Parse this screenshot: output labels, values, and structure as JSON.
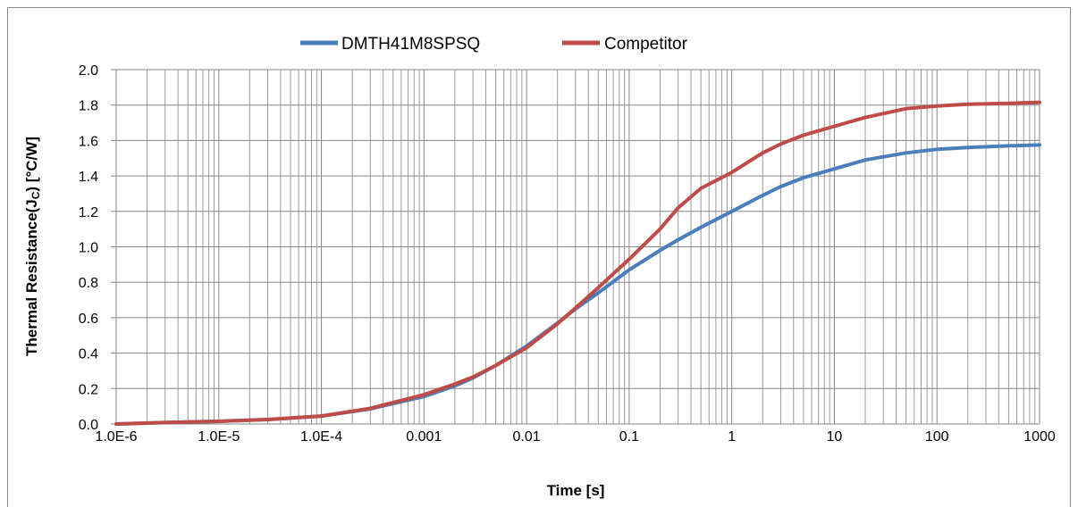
{
  "chart_data": {
    "type": "line",
    "title": "",
    "xlabel": "Time [s]",
    "ylabel": "Thermal Resistance(J",
    "ylabel_sub": "C",
    "ylabel_suffix": ") [°C/W]",
    "x_scale": "log",
    "xlim": [
      1e-06,
      1000
    ],
    "ylim": [
      0,
      2.0
    ],
    "grid": true,
    "legend_position": "top-center",
    "x_tick_labels": [
      "1.0E-6",
      "1.0E-5",
      "1.0E-4",
      "0.001",
      "0.01",
      "0.1",
      "1",
      "10",
      "100",
      "1000"
    ],
    "y_tick_labels": [
      "0.0",
      "0.2",
      "0.4",
      "0.6",
      "0.8",
      "1.0",
      "1.2",
      "1.4",
      "1.6",
      "1.8",
      "2.0"
    ],
    "x": [
      1e-06,
      3e-06,
      1e-05,
      3e-05,
      0.0001,
      0.0003,
      0.001,
      0.002,
      0.003,
      0.005,
      0.01,
      0.02,
      0.03,
      0.05,
      0.1,
      0.2,
      0.3,
      0.5,
      1,
      2,
      3,
      5,
      10,
      20,
      50,
      100,
      200,
      500,
      1000
    ],
    "series": [
      {
        "name": "DMTH41M8SPSQ",
        "color": "#4a7ebb",
        "values": [
          0.0,
          0.008,
          0.015,
          0.025,
          0.045,
          0.085,
          0.155,
          0.215,
          0.26,
          0.33,
          0.44,
          0.57,
          0.65,
          0.74,
          0.87,
          0.98,
          1.04,
          1.11,
          1.2,
          1.29,
          1.34,
          1.39,
          1.44,
          1.49,
          1.53,
          1.55,
          1.56,
          1.57,
          1.575
        ]
      },
      {
        "name": "Competitor",
        "color": "#be4b48",
        "values": [
          0.0,
          0.008,
          0.015,
          0.025,
          0.045,
          0.088,
          0.165,
          0.225,
          0.265,
          0.33,
          0.43,
          0.565,
          0.655,
          0.77,
          0.93,
          1.1,
          1.22,
          1.33,
          1.42,
          1.53,
          1.58,
          1.63,
          1.68,
          1.73,
          1.78,
          1.795,
          1.805,
          1.81,
          1.815
        ]
      }
    ]
  }
}
